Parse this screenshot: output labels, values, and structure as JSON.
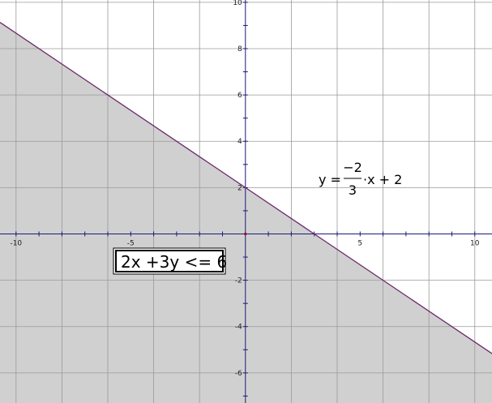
{
  "chart_data": {
    "type": "line",
    "xlim": [
      -10.7,
      10.75
    ],
    "ylim": [
      -7.3,
      10.1
    ],
    "grid": true,
    "x_ticks": [
      -10,
      -5,
      5,
      10
    ],
    "y_ticks": [
      -6,
      -4,
      -2,
      2,
      4,
      6,
      8,
      10
    ],
    "boundary_line": {
      "slope": -0.6667,
      "intercept": 2
    },
    "shaded_region": "below",
    "equation_label": {
      "lhs": "y =",
      "numerator": "−2",
      "denominator": "3",
      "rhs": "·x + 2"
    },
    "inequality_label": "2x +3y <= 6",
    "colors": {
      "shade": "#d0d0d0",
      "grid": "#9a9a9a",
      "axis": "#1a1a7a",
      "boundary": "#6b2a6b",
      "origin": "#aa0000"
    }
  }
}
